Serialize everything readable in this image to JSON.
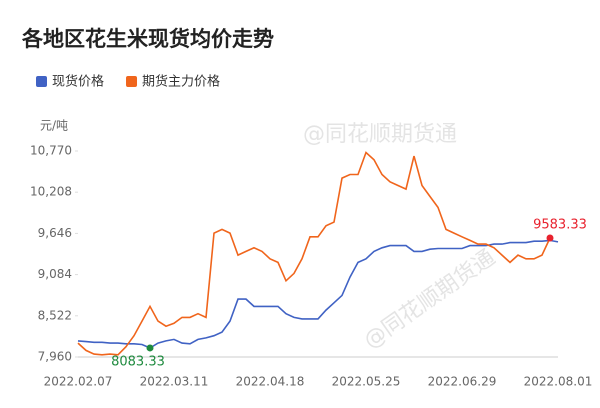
{
  "chart_data": {
    "type": "line",
    "title": "各地区花生米现货均价走势",
    "y_label": "元/吨",
    "watermark": "@同花顺期货通",
    "legend": "top-left",
    "grid": false,
    "categories": [
      "2022.02.07",
      null,
      null,
      null,
      null,
      null,
      null,
      null,
      null,
      null,
      null,
      null,
      "2022.03.11",
      null,
      null,
      null,
      null,
      null,
      null,
      null,
      null,
      null,
      null,
      null,
      "2022.04.18",
      null,
      null,
      null,
      null,
      null,
      null,
      null,
      null,
      null,
      null,
      null,
      "2022.05.25",
      null,
      null,
      null,
      null,
      null,
      null,
      null,
      null,
      null,
      null,
      null,
      "2022.06.29",
      null,
      null,
      null,
      null,
      null,
      null,
      null,
      null,
      null,
      null,
      null,
      "2022.08.01"
    ],
    "ylim": [
      7960,
      10770
    ],
    "yticks": [
      {
        "value": 7960,
        "label": "7,960"
      },
      {
        "value": 8522,
        "label": "8,522"
      },
      {
        "value": 9084,
        "label": "9,084"
      },
      {
        "value": 9646,
        "label": "9,646"
      },
      {
        "value": 10208,
        "label": "10,208"
      },
      {
        "value": 10770,
        "label": "10,770"
      }
    ],
    "series": [
      {
        "name": "现货价格",
        "color": "#4062c4",
        "values": [
          8180,
          8170,
          8160,
          8160,
          8150,
          8150,
          8140,
          8140,
          8130,
          8083.33,
          8150,
          8180,
          8200,
          8150,
          8140,
          8200,
          8220,
          8250,
          8300,
          8450,
          8750,
          8750,
          8650,
          8650,
          8650,
          8650,
          8550,
          8500,
          8480,
          8480,
          8480,
          8600,
          8700,
          8800,
          9050,
          9250,
          9300,
          9400,
          9450,
          9480,
          9480,
          9480,
          9400,
          9400,
          9430,
          9440,
          9440,
          9440,
          9440,
          9480,
          9480,
          9480,
          9500,
          9500,
          9520,
          9520,
          9520,
          9540,
          9540,
          9550,
          9530
        ]
      },
      {
        "name": "期货主力价格",
        "color": "#f0651c",
        "values": [
          8150,
          8050,
          8000,
          7990,
          8000,
          7990,
          8100,
          8250,
          8450,
          8650,
          8450,
          8380,
          8420,
          8500,
          8500,
          8550,
          8500,
          9650,
          9700,
          9650,
          9350,
          9400,
          9450,
          9400,
          9300,
          9250,
          9000,
          9100,
          9300,
          9600,
          9600,
          9750,
          9800,
          10400,
          10450,
          10450,
          10750,
          10650,
          10450,
          10350,
          10300,
          10250,
          10700,
          10300,
          10150,
          10000,
          9700,
          9650,
          9600,
          9550,
          9500,
          9500,
          9450,
          9350,
          9250,
          9350,
          9300,
          9300,
          9350,
          9583.33,
          null
        ]
      }
    ]
  }
}
